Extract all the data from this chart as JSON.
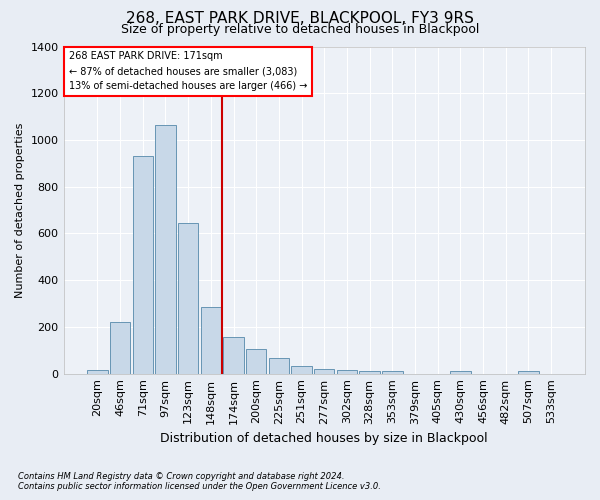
{
  "title": "268, EAST PARK DRIVE, BLACKPOOL, FY3 9RS",
  "subtitle": "Size of property relative to detached houses in Blackpool",
  "xlabel": "Distribution of detached houses by size in Blackpool",
  "ylabel": "Number of detached properties",
  "footnote1": "Contains HM Land Registry data © Crown copyright and database right 2024.",
  "footnote2": "Contains public sector information licensed under the Open Government Licence v3.0.",
  "annotation_line1": "268 EAST PARK DRIVE: 171sqm",
  "annotation_line2": "← 87% of detached houses are smaller (3,083)",
  "annotation_line3": "13% of semi-detached houses are larger (466) →",
  "bar_color": "#c8d8e8",
  "bar_edge_color": "#5588aa",
  "vline_color": "#cc0000",
  "categories": [
    "20sqm",
    "46sqm",
    "71sqm",
    "97sqm",
    "123sqm",
    "148sqm",
    "174sqm",
    "200sqm",
    "225sqm",
    "251sqm",
    "277sqm",
    "302sqm",
    "328sqm",
    "353sqm",
    "379sqm",
    "405sqm",
    "430sqm",
    "456sqm",
    "482sqm",
    "507sqm",
    "533sqm"
  ],
  "values": [
    15,
    220,
    930,
    1065,
    645,
    285,
    155,
    105,
    65,
    35,
    20,
    15,
    10,
    10,
    0,
    0,
    10,
    0,
    0,
    10,
    0
  ],
  "ylim": [
    0,
    1400
  ],
  "yticks": [
    0,
    200,
    400,
    600,
    800,
    1000,
    1200,
    1400
  ],
  "background_color": "#e8edf4",
  "plot_bg_color": "#edf1f7",
  "title_fontsize": 11,
  "subtitle_fontsize": 9,
  "ylabel_fontsize": 8,
  "xlabel_fontsize": 9,
  "tick_fontsize": 8,
  "annotation_fontsize": 7,
  "footnote_fontsize": 6
}
